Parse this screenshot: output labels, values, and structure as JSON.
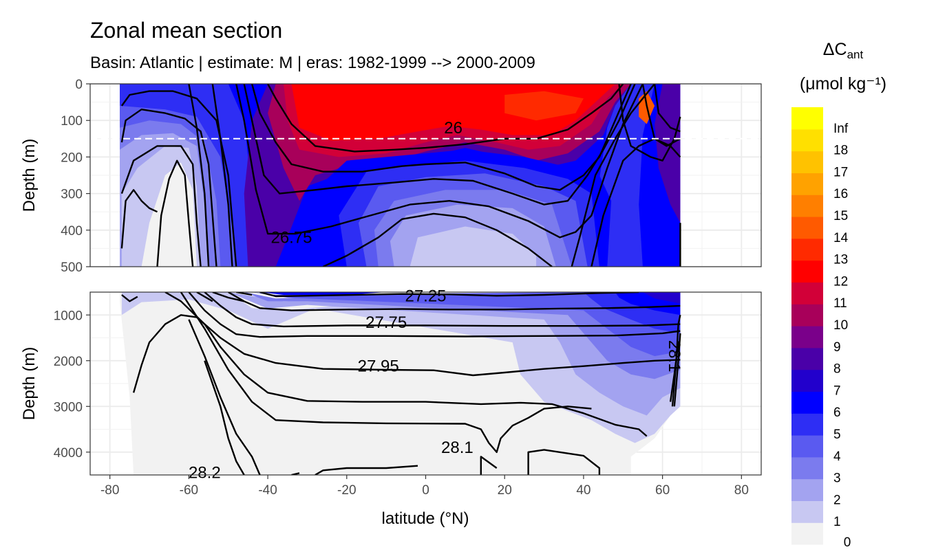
{
  "chart_data": {
    "type": "contour",
    "title": "Zonal mean section",
    "subtitle": "Basin: Atlantic | estimate: M  | eras: 1982-1999 --> 2000-2009",
    "xlabel": "latitude (°N)",
    "ylabel": "Depth (m)",
    "xlim": [
      -85,
      85
    ],
    "x_ticks": [
      -80,
      -60,
      -40,
      -20,
      0,
      20,
      40,
      60,
      80
    ],
    "x_tick_labels": [
      "-80",
      "-60",
      "-40",
      "-20",
      "0",
      "20",
      "40",
      "60",
      "80"
    ],
    "grid": true,
    "panels": [
      {
        "name": "upper",
        "ylim": [
          0,
          500
        ],
        "y_ticks": [
          0,
          100,
          200,
          300,
          400,
          500
        ],
        "y_tick_labels": [
          "0",
          "100",
          "200",
          "300",
          "400",
          "500"
        ],
        "reference_line_depth": 150
      },
      {
        "name": "lower",
        "ylim": [
          500,
          4500
        ],
        "y_ticks": [
          1000,
          2000,
          3000,
          4000
        ],
        "y_tick_labels": [
          "1000",
          "2000",
          "3000",
          "4000"
        ]
      }
    ],
    "contour_labels": [
      {
        "text": "26",
        "x": 7,
        "depth": 120
      },
      {
        "text": "26.75",
        "x": -34,
        "depth": 420
      },
      {
        "text": "27.25",
        "x": 0,
        "depth": 580
      },
      {
        "text": "27.75",
        "x": -10,
        "depth": 1160
      },
      {
        "text": "27.95",
        "x": -12,
        "depth": 2120
      },
      {
        "text": "28.1",
        "x": 8,
        "depth": 3900
      },
      {
        "text": "28.2",
        "x": -56,
        "depth": 4450
      },
      {
        "text": "28.1",
        "x": 63,
        "depth": 1900
      }
    ],
    "legend": {
      "title": "ΔC",
      "title_sub": "ant",
      "unit_label": "(μmol kg⁻¹)",
      "placement": "right",
      "labels": [
        "0",
        "1",
        "2",
        "3",
        "4",
        "5",
        "6",
        "7",
        "8",
        "9",
        "10",
        "11",
        "12",
        "13",
        "14",
        "15",
        "16",
        "17",
        "18",
        "Inf"
      ],
      "colors": [
        "#f2f2f2",
        "#c8c8f2",
        "#a3a3f0",
        "#7b7bee",
        "#5a5af0",
        "#2e2ef4",
        "#0000ff",
        "#2200cc",
        "#4a00a8",
        "#7a008a",
        "#a8005a",
        "#d20038",
        "#ff0000",
        "#ff2a00",
        "#ff5a00",
        "#ff7f00",
        "#ffa200",
        "#ffc200",
        "#ffe000",
        "#ffff00"
      ]
    }
  }
}
